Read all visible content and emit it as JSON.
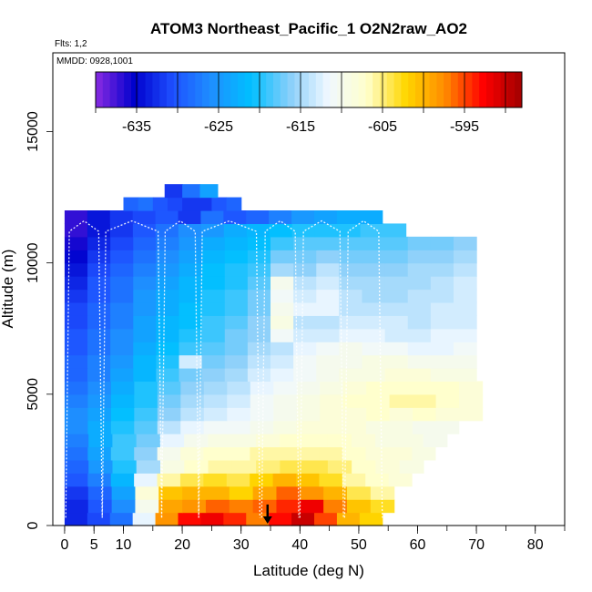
{
  "chart_data": {
    "type": "heatmap",
    "title": "ATOM3 Northeast_Pacific_1 O2N2raw_AO2",
    "flights_label": "Flts: 1,2",
    "dates_label": "MMDD: 0928,1001",
    "xlabel": "Latitude (deg N)",
    "ylabel": "Altitude (m)",
    "xlim": [
      -2,
      85
    ],
    "ylim": [
      0,
      18000
    ],
    "x_ticks": [
      0,
      5,
      10,
      20,
      30,
      40,
      50,
      60,
      70,
      80
    ],
    "y_ticks": [
      0,
      5000,
      10000,
      15000
    ],
    "colorbar": {
      "range": [
        -640,
        -588
      ],
      "ticks": [
        -635,
        -625,
        -615,
        -605,
        -595
      ],
      "colors": [
        "#8a2be2",
        "#0000cd",
        "#1e50ff",
        "#1e90ff",
        "#00bfff",
        "#87cefa",
        "#f0f8ff",
        "#ffffcc",
        "#ffd700",
        "#ff8c00",
        "#ff0000",
        "#a00000"
      ]
    },
    "marker": {
      "latitude": 34.5,
      "altitude": 800,
      "direction": "down"
    },
    "cells": [
      {
        "alt": [
          0,
          500
        ],
        "lat": [
          0,
          54
        ],
        "vals": [
          -633,
          -631,
          -628,
          -612,
          -598,
          -593,
          -592,
          -594,
          -597,
          -593,
          -590,
          -595,
          -600,
          -602
        ]
      },
      {
        "alt": [
          500,
          1000
        ],
        "lat": [
          0,
          56
        ],
        "vals": [
          -633,
          -630,
          -626,
          -610,
          -599,
          -598,
          -596,
          -597,
          -596,
          -594,
          -592,
          -597,
          -601,
          -603
        ]
      },
      {
        "alt": [
          1000,
          1500
        ],
        "lat": [
          0,
          56
        ],
        "vals": [
          -632,
          -629,
          -624,
          -608,
          -601,
          -600,
          -600,
          -602,
          -599,
          -596,
          -598,
          -600,
          -604,
          -606
        ]
      },
      {
        "alt": [
          1500,
          2000
        ],
        "lat": [
          0,
          59
        ],
        "vals": [
          -630,
          -627,
          -622,
          -612,
          -606,
          -604,
          -603,
          -604,
          -602,
          -600,
          -601,
          -603,
          -606,
          -607,
          -608
        ]
      },
      {
        "alt": [
          2000,
          2500
        ],
        "lat": [
          0,
          61
        ],
        "vals": [
          -629,
          -625,
          -620,
          -615,
          -609,
          -607,
          -606,
          -606,
          -605,
          -604,
          -604,
          -605,
          -607,
          -608,
          -609
        ]
      },
      {
        "alt": [
          2500,
          3000
        ],
        "lat": [
          0,
          63
        ],
        "vals": [
          -628,
          -624,
          -619,
          -616,
          -610,
          -608,
          -607,
          -607,
          -606,
          -606,
          -606,
          -606,
          -607,
          -608,
          -608,
          -609
        ]
      },
      {
        "alt": [
          3000,
          3500
        ],
        "lat": [
          0,
          65
        ],
        "vals": [
          -627,
          -623,
          -619,
          -617,
          -612,
          -610,
          -609,
          -609,
          -608,
          -607,
          -607,
          -607,
          -608,
          -609,
          -609,
          -610
        ]
      },
      {
        "alt": [
          3500,
          4000
        ],
        "lat": [
          0,
          67
        ],
        "vals": [
          -626,
          -623,
          -620,
          -618,
          -614,
          -612,
          -611,
          -611,
          -610,
          -609,
          -608,
          -608,
          -608,
          -609,
          -609,
          -610,
          -610
        ]
      },
      {
        "alt": [
          4000,
          4500
        ],
        "lat": [
          0,
          71
        ],
        "vals": [
          -626,
          -624,
          -621,
          -619,
          -616,
          -614,
          -613,
          -612,
          -611,
          -610,
          -609,
          -608,
          -608,
          -607,
          -608,
          -607,
          -608,
          -608
        ]
      },
      {
        "alt": [
          4500,
          5000
        ],
        "lat": [
          0,
          71
        ],
        "vals": [
          -627,
          -625,
          -622,
          -620,
          -617,
          -615,
          -614,
          -613,
          -611,
          -610,
          -609,
          -608,
          -607,
          -607,
          -606,
          -606,
          -607,
          -608
        ]
      },
      {
        "alt": [
          5000,
          5500
        ],
        "lat": [
          0,
          71
        ],
        "vals": [
          -628,
          -626,
          -623,
          -620,
          -618,
          -616,
          -615,
          -614,
          -612,
          -611,
          -610,
          -609,
          -608,
          -607,
          -607,
          -607,
          -607,
          -608
        ]
      },
      {
        "alt": [
          5500,
          6000
        ],
        "lat": [
          0,
          70
        ],
        "vals": [
          -629,
          -627,
          -624,
          -622,
          -619,
          -617,
          -616,
          -615,
          -613,
          -612,
          -611,
          -610,
          -609,
          -609,
          -608,
          -608,
          -609,
          -609
        ]
      },
      {
        "alt": [
          6000,
          6500
        ],
        "lat": [
          0,
          70
        ],
        "vals": [
          -629,
          -627,
          -625,
          -622,
          -620,
          -613,
          -617,
          -616,
          -614,
          -613,
          -611,
          -610,
          -610,
          -609,
          -609,
          -610,
          -610,
          -610
        ]
      },
      {
        "alt": [
          6500,
          7000
        ],
        "lat": [
          0,
          70
        ],
        "vals": [
          -630,
          -628,
          -626,
          -623,
          -621,
          -619,
          -618,
          -617,
          -615,
          -614,
          -612,
          -611,
          -610,
          -611,
          -611,
          -612,
          -612,
          -611
        ]
      },
      {
        "alt": [
          7000,
          7500
        ],
        "lat": [
          0,
          70
        ],
        "vals": [
          -630,
          -628,
          -626,
          -624,
          -622,
          -620,
          -619,
          -617,
          -616,
          -611,
          -613,
          -613,
          -612,
          -612,
          -613,
          -613,
          -612,
          -612
        ]
      },
      {
        "alt": [
          7500,
          8000
        ],
        "lat": [
          0,
          70
        ],
        "vals": [
          -631,
          -629,
          -627,
          -624,
          -622,
          -621,
          -619,
          -618,
          -616,
          -609,
          -614,
          -614,
          -613,
          -613,
          -613,
          -614,
          -613,
          -613
        ]
      },
      {
        "alt": [
          8000,
          8500
        ],
        "lat": [
          0,
          70
        ],
        "vals": [
          -631,
          -629,
          -627,
          -625,
          -623,
          -621,
          -620,
          -619,
          -617,
          -610,
          -612,
          -612,
          -614,
          -614,
          -614,
          -614,
          -613,
          -613
        ]
      },
      {
        "alt": [
          8500,
          9000
        ],
        "lat": [
          0,
          70
        ],
        "vals": [
          -632,
          -630,
          -628,
          -625,
          -623,
          -622,
          -620,
          -619,
          -617,
          -611,
          -613,
          -612,
          -614,
          -615,
          -615,
          -614,
          -614,
          -613
        ]
      },
      {
        "alt": [
          9000,
          9500
        ],
        "lat": [
          0,
          70
        ],
        "vals": [
          -633,
          -630,
          -628,
          -626,
          -624,
          -622,
          -621,
          -620,
          -618,
          -610,
          -614,
          -613,
          -615,
          -615,
          -615,
          -615,
          -614,
          -613
        ]
      },
      {
        "alt": [
          9500,
          10000
        ],
        "lat": [
          0,
          70
        ],
        "vals": [
          -634,
          -631,
          -629,
          -627,
          -625,
          -623,
          -621,
          -620,
          -619,
          -615,
          -616,
          -614,
          -616,
          -616,
          -616,
          -615,
          -615,
          -614
        ]
      },
      {
        "alt": [
          10000,
          10500
        ],
        "lat": [
          0,
          70
        ],
        "vals": [
          -635,
          -632,
          -630,
          -628,
          -626,
          -624,
          -622,
          -621,
          -620,
          -617,
          -617,
          -616,
          -617,
          -617,
          -617,
          -616,
          -616,
          -615
        ]
      },
      {
        "alt": [
          10500,
          11000
        ],
        "lat": [
          0,
          70
        ],
        "vals": [
          -636,
          -633,
          -631,
          -629,
          -627,
          -625,
          -623,
          -622,
          -621,
          -619,
          -618,
          -618,
          -618,
          -618,
          -618,
          -617,
          -617,
          -616
        ]
      },
      {
        "alt": [
          11000,
          11500
        ],
        "lat": [
          0,
          58
        ],
        "vals": [
          -637,
          -634,
          -632,
          -630,
          -628,
          -626,
          -625,
          -623,
          -622,
          -621,
          -620,
          -620,
          -620,
          -619,
          -619
        ]
      },
      {
        "alt": [
          11500,
          12000
        ],
        "lat": [
          0,
          54
        ],
        "vals": [
          -637,
          -634,
          -632,
          -631,
          -630,
          -632,
          -628,
          -630,
          -629,
          -627,
          -625,
          -624,
          -623,
          -623
        ]
      },
      {
        "alt": [
          12000,
          12500
        ],
        "lat": [
          10,
          30
        ],
        "vals": [
          -629,
          -628,
          -630,
          -631,
          -632,
          -632,
          -630,
          -629
        ]
      },
      {
        "alt": [
          12500,
          13000
        ],
        "lat": [
          17,
          26
        ],
        "vals": [
          -632,
          -628,
          -624
        ]
      }
    ]
  }
}
